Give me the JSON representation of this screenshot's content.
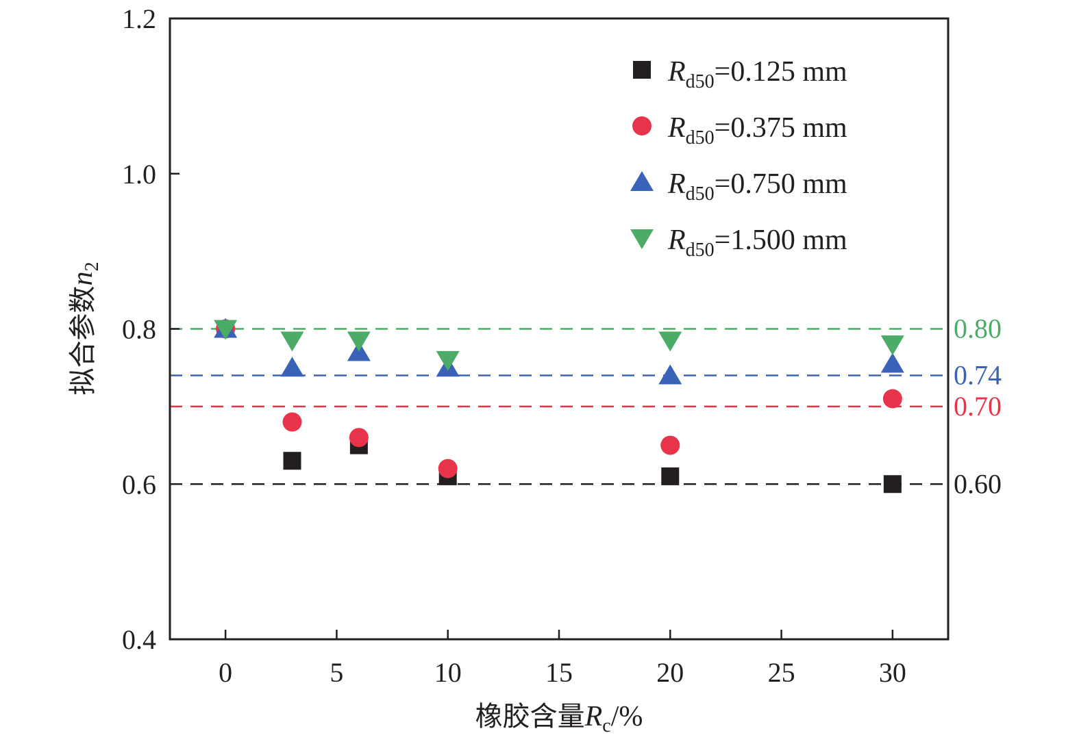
{
  "chart_data": {
    "type": "scatter",
    "x_label": {
      "main": "橡胶含量",
      "var": "R",
      "sub": "c",
      "unit": "/%"
    },
    "y_label": {
      "main": "拟合参数",
      "var": "n",
      "sub": "2"
    },
    "xlim": [
      -2.5,
      32.5
    ],
    "ylim": [
      0.4,
      1.2
    ],
    "x_ticks": [
      0,
      5,
      10,
      15,
      20,
      25,
      30
    ],
    "y_ticks": [
      0.4,
      0.6,
      0.8,
      1.0,
      1.2
    ],
    "y_tick_labels": [
      "0.4",
      "0.6",
      "0.8",
      "1.0",
      "1.2"
    ],
    "legend_position": "top-right",
    "series": [
      {
        "name_var": "R",
        "name_sub": "d50",
        "name_rest": "=0.125 mm",
        "marker": "square",
        "color": "#231f20",
        "x": [
          0,
          3,
          6,
          10,
          20,
          30
        ],
        "y": [
          0.8,
          0.63,
          0.65,
          0.61,
          0.61,
          0.6
        ]
      },
      {
        "name_var": "R",
        "name_sub": "d50",
        "name_rest": "=0.375 mm",
        "marker": "circle",
        "color": "#e8344a",
        "x": [
          0,
          3,
          6,
          10,
          20,
          30
        ],
        "y": [
          0.8,
          0.68,
          0.66,
          0.62,
          0.65,
          0.71
        ]
      },
      {
        "name_var": "R",
        "name_sub": "d50",
        "name_rest": "=0.750 mm",
        "marker": "triangle-up",
        "color": "#3a63b8",
        "x": [
          0,
          3,
          6,
          10,
          20,
          30
        ],
        "y": [
          0.8,
          0.75,
          0.77,
          0.75,
          0.74,
          0.755
        ]
      },
      {
        "name_var": "R",
        "name_sub": "d50",
        "name_rest": "=1.500 mm",
        "marker": "triangle-down",
        "color": "#4bab67",
        "x": [
          0,
          3,
          6,
          10,
          20,
          30
        ],
        "y": [
          0.8,
          0.785,
          0.785,
          0.76,
          0.785,
          0.78
        ]
      }
    ],
    "reference_lines": [
      {
        "y": 0.8,
        "label": "0.80",
        "color": "#4bab67"
      },
      {
        "y": 0.74,
        "label": "0.74",
        "color": "#3a63b8"
      },
      {
        "y": 0.7,
        "label": "0.70",
        "color": "#e8344a"
      },
      {
        "y": 0.6,
        "label": "0.60",
        "color": "#231f20"
      }
    ]
  }
}
